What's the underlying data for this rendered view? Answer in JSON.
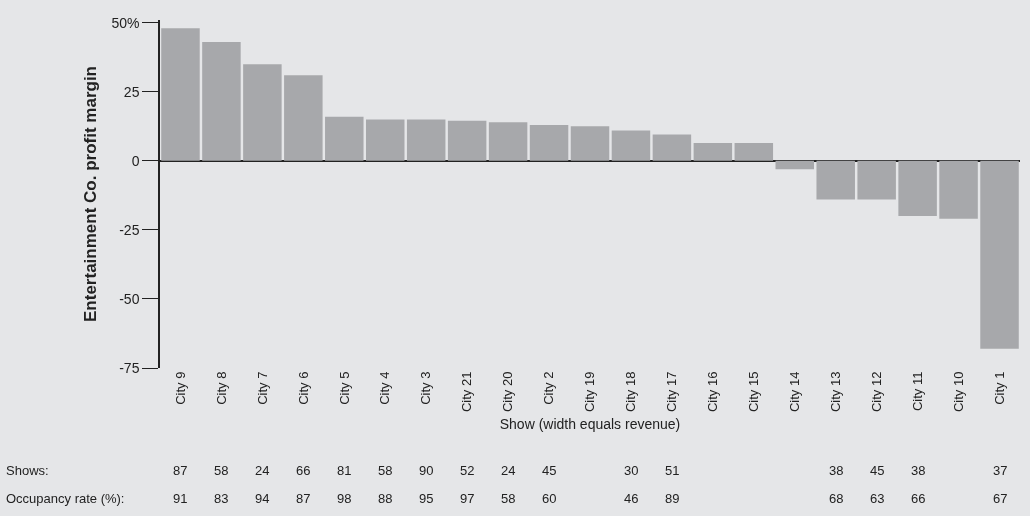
{
  "chart_data": {
    "type": "bar",
    "ylabel": "Entertainment Co. profit margin",
    "xlabel": "Show (width equals revenue)",
    "categories": [
      "City 9",
      "City 8",
      "City 7",
      "City 6",
      "City 5",
      "City 4",
      "City 3",
      "City 21",
      "City 20",
      "City 2",
      "City 19",
      "City 18",
      "City 17",
      "City 16",
      "City 15",
      "City 14",
      "City 13",
      "City 12",
      "City 11",
      "City 10",
      "City 1"
    ],
    "values": [
      48,
      43,
      35,
      31,
      16,
      15,
      15,
      14.5,
      14,
      13,
      12.5,
      11,
      9.5,
      6.5,
      6.5,
      -3,
      -14,
      -14,
      -20,
      -21,
      -68
    ],
    "color": "#a7a8ab",
    "ylim": [
      -75,
      51
    ],
    "yticks": [
      {
        "value": 50,
        "label": "50%"
      },
      25,
      0,
      -25,
      -50,
      -75
    ],
    "annotations": [
      "Shows:",
      "87",
      "58",
      "24",
      "66",
      "81",
      "58",
      "90",
      "52",
      "24",
      "45",
      null,
      "30",
      "51",
      null,
      null,
      null,
      "38",
      "45",
      "38",
      null,
      "37",
      "Occupancy rate (%):",
      "91",
      "83",
      "94",
      "87",
      "98",
      "88",
      "95",
      "97",
      "58",
      "60",
      null,
      "46",
      "89",
      null,
      null,
      null,
      "68",
      "63",
      "66",
      null,
      "67"
    ]
  }
}
